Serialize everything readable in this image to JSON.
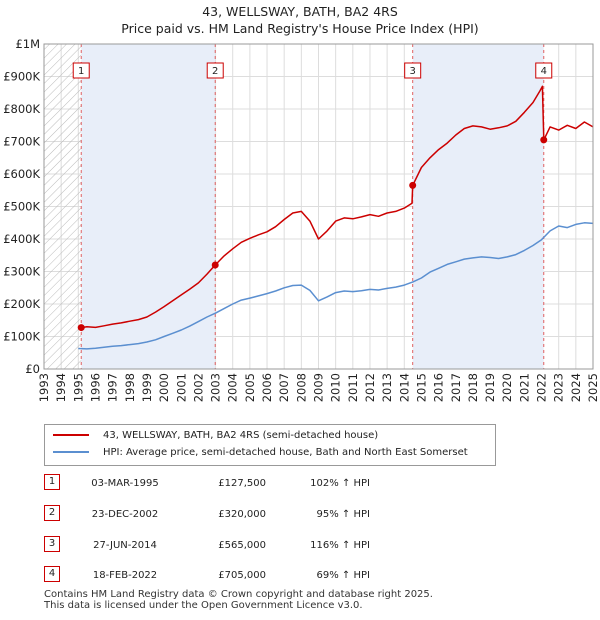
{
  "title": "43, WELLSWAY, BATH, BA2 4RS",
  "subtitle": "Price paid vs. HM Land Registry's House Price Index (HPI)",
  "chart_data": {
    "type": "line",
    "x_range": [
      1993,
      2025
    ],
    "ylim": [
      0,
      1000000
    ],
    "y_ticks": [
      0,
      100000,
      200000,
      300000,
      400000,
      500000,
      600000,
      700000,
      800000,
      900000,
      1000000
    ],
    "y_tick_labels": [
      "£0",
      "£100K",
      "£200K",
      "£300K",
      "£400K",
      "£500K",
      "£600K",
      "£700K",
      "£800K",
      "£900K",
      "£1M"
    ],
    "x_ticks": [
      1993,
      1994,
      1995,
      1996,
      1997,
      1998,
      1999,
      2000,
      2001,
      2002,
      2003,
      2004,
      2005,
      2006,
      2007,
      2008,
      2009,
      2010,
      2011,
      2012,
      2013,
      2014,
      2015,
      2016,
      2017,
      2018,
      2019,
      2020,
      2021,
      2022,
      2023,
      2024,
      2025
    ],
    "hatched_region": [
      1993,
      1995.17
    ],
    "shaded_bands": [
      [
        1995.17,
        2002.98
      ],
      [
        2014.49,
        2022.13
      ]
    ],
    "series": [
      {
        "name": "43, WELLSWAY, BATH, BA2 4RS (semi-detached house)",
        "color": "#cc0000",
        "x": [
          1995.17,
          1995.5,
          1996,
          1996.5,
          1997,
          1997.5,
          1998,
          1998.5,
          1999,
          1999.5,
          2000,
          2000.5,
          2001,
          2001.5,
          2002,
          2002.5,
          2002.98,
          2003.5,
          2004,
          2004.5,
          2005,
          2005.5,
          2006,
          2006.5,
          2007,
          2007.5,
          2008,
          2008.5,
          2009,
          2009.5,
          2010,
          2010.5,
          2011,
          2011.5,
          2012,
          2012.5,
          2013,
          2013.5,
          2014,
          2014.45,
          2014.49,
          2015,
          2015.5,
          2016,
          2016.5,
          2017,
          2017.5,
          2018,
          2018.5,
          2019,
          2019.5,
          2020,
          2020.5,
          2021,
          2021.5,
          2021.9,
          2022.05,
          2022.13,
          2022.5,
          2023,
          2023.5,
          2024,
          2024.5,
          2025
        ],
        "values": [
          127500,
          130000,
          128000,
          133000,
          138000,
          142000,
          147000,
          152000,
          160000,
          175000,
          192000,
          210000,
          228000,
          246000,
          265000,
          292000,
          320000,
          348000,
          370000,
          390000,
          402000,
          413000,
          422000,
          438000,
          460000,
          480000,
          485000,
          455000,
          400000,
          425000,
          455000,
          465000,
          462000,
          468000,
          475000,
          470000,
          480000,
          485000,
          495000,
          510000,
          565000,
          620000,
          650000,
          675000,
          695000,
          720000,
          740000,
          748000,
          745000,
          738000,
          742000,
          748000,
          762000,
          790000,
          820000,
          855000,
          870000,
          705000,
          745000,
          735000,
          750000,
          740000,
          760000,
          745000
        ]
      },
      {
        "name": "HPI: Average price, semi-detached house, Bath and North East Somerset",
        "color": "#5b8fd0",
        "x": [
          1995,
          1995.5,
          1996,
          1996.5,
          1997,
          1997.5,
          1998,
          1998.5,
          1999,
          1999.5,
          2000,
          2000.5,
          2001,
          2001.5,
          2002,
          2002.5,
          2003,
          2003.5,
          2004,
          2004.5,
          2005,
          2005.5,
          2006,
          2006.5,
          2007,
          2007.5,
          2008,
          2008.5,
          2009,
          2009.5,
          2010,
          2010.5,
          2011,
          2011.5,
          2012,
          2012.5,
          2013,
          2013.5,
          2014,
          2014.5,
          2015,
          2015.5,
          2016,
          2016.5,
          2017,
          2017.5,
          2018,
          2018.5,
          2019,
          2019.5,
          2020,
          2020.5,
          2021,
          2021.5,
          2022,
          2022.5,
          2023,
          2023.5,
          2024,
          2024.5,
          2025
        ],
        "values": [
          63000,
          62000,
          64000,
          67000,
          70000,
          72000,
          75000,
          78000,
          83000,
          90000,
          100000,
          110000,
          120000,
          132000,
          146000,
          160000,
          172000,
          186000,
          200000,
          212000,
          218000,
          225000,
          232000,
          240000,
          250000,
          257000,
          258000,
          242000,
          210000,
          222000,
          235000,
          240000,
          238000,
          241000,
          245000,
          243000,
          248000,
          252000,
          258000,
          268000,
          280000,
          298000,
          310000,
          322000,
          330000,
          338000,
          342000,
          345000,
          343000,
          340000,
          345000,
          352000,
          365000,
          380000,
          398000,
          425000,
          440000,
          435000,
          445000,
          450000,
          448000
        ]
      }
    ],
    "markers": [
      {
        "label": "1",
        "x": 1995.17,
        "value": 127500
      },
      {
        "label": "2",
        "x": 2002.98,
        "value": 320000
      },
      {
        "label": "3",
        "x": 2014.49,
        "value": 565000
      },
      {
        "label": "4",
        "x": 2022.13,
        "value": 705000
      }
    ]
  },
  "legend": {
    "property_label": "43, WELLSWAY, BATH, BA2 4RS (semi-detached house)",
    "hpi_label": "HPI: Average price, semi-detached house, Bath and North East Somerset"
  },
  "sales": [
    {
      "num": "1",
      "date": "03-MAR-1995",
      "price": "£127,500",
      "hpi": "102% ↑ HPI"
    },
    {
      "num": "2",
      "date": "23-DEC-2002",
      "price": "£320,000",
      "hpi": "95% ↑ HPI"
    },
    {
      "num": "3",
      "date": "27-JUN-2014",
      "price": "£565,000",
      "hpi": "116% ↑ HPI"
    },
    {
      "num": "4",
      "date": "18-FEB-2022",
      "price": "£705,000",
      "hpi": "69% ↑ HPI"
    }
  ],
  "footer": {
    "line1": "Contains HM Land Registry data © Crown copyright and database right 2025.",
    "line2": "This data is licensed under the Open Government Licence v3.0."
  }
}
